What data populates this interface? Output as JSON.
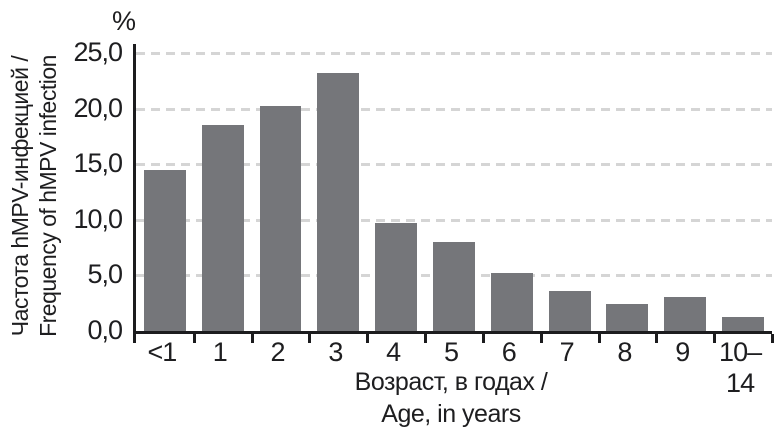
{
  "chart": {
    "percent_label": "%",
    "y_axis_title_line1": "Частота hMPV-инфекцией /",
    "y_axis_title_line2": "Frequency of hMPV infection",
    "x_axis_title_line1": "Возраст, в годах /",
    "x_axis_title_line2": "Age, in years"
  },
  "chart_data": {
    "type": "bar",
    "title": "",
    "categories": [
      "<1",
      "1",
      "2",
      "3",
      "4",
      "5",
      "6",
      "7",
      "8",
      "9",
      "10–14"
    ],
    "values": [
      14.5,
      18.5,
      20.2,
      23.2,
      9.7,
      8.0,
      5.2,
      3.6,
      2.4,
      3.1,
      1.3
    ],
    "xlabel": "Возраст, в годах / Age, in years",
    "ylabel": "Частота hMPV-инфекцией / Frequency of hMPV infection",
    "unit": "%",
    "ylim": [
      0,
      25
    ],
    "y_ticks": [
      0,
      5,
      10,
      15,
      20,
      25
    ],
    "y_tick_labels": [
      "0,0",
      "5,0",
      "10,0",
      "15,0",
      "20,0",
      "25,0"
    ],
    "grid": "horizontal dashed",
    "legend": "none",
    "colors": {
      "bar": "#75767a",
      "grid": "#d5d5d5",
      "axis": "#1c1c1e",
      "text": "#1e1e20",
      "background": "#ffffff"
    }
  }
}
